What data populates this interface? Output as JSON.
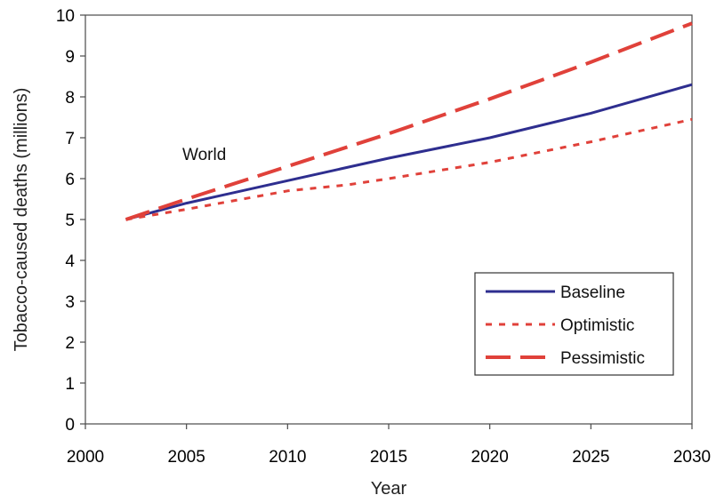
{
  "chart_data": {
    "type": "line",
    "title": "",
    "xlabel": "Year",
    "ylabel": "Tobacco-caused deaths (millions)",
    "xlim": [
      2000,
      2030
    ],
    "ylim": [
      0,
      10
    ],
    "xticks": [
      "2000",
      "2005",
      "2010",
      "2015",
      "2020",
      "2025",
      "2030"
    ],
    "yticks": [
      "0",
      "1",
      "2",
      "3",
      "4",
      "5",
      "6",
      "7",
      "8",
      "9",
      "10"
    ],
    "grid": false,
    "legend_position": "bottom-right",
    "annotation": "World",
    "series": [
      {
        "name": "Baseline",
        "color": "#2e2e8f",
        "style": "solid",
        "x": [
          2002,
          2005,
          2010,
          2015,
          2020,
          2025,
          2030
        ],
        "y": [
          5.0,
          5.4,
          5.95,
          6.5,
          7.0,
          7.6,
          8.3
        ]
      },
      {
        "name": "Optimistic",
        "color": "#e0413a",
        "style": "dotted",
        "x": [
          2002,
          2005,
          2010,
          2013,
          2015,
          2020,
          2025,
          2030
        ],
        "y": [
          5.0,
          5.25,
          5.7,
          5.85,
          6.0,
          6.4,
          6.9,
          7.45
        ]
      },
      {
        "name": "Pessimistic",
        "color": "#e0413a",
        "style": "dashed",
        "x": [
          2002,
          2005,
          2010,
          2015,
          2020,
          2025,
          2030
        ],
        "y": [
          5.0,
          5.5,
          6.3,
          7.1,
          7.95,
          8.85,
          9.8
        ]
      }
    ]
  }
}
